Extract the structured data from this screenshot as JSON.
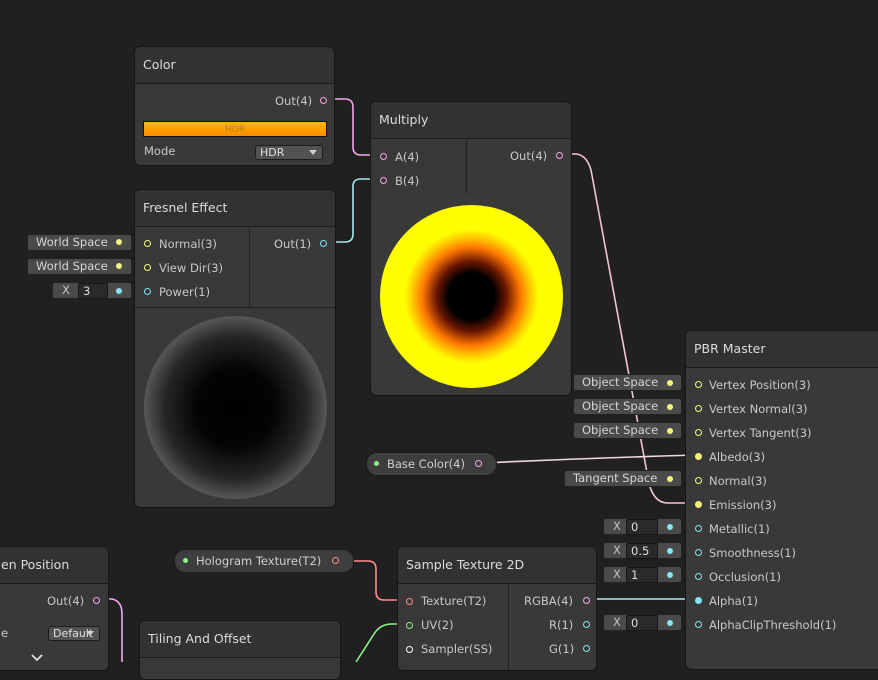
{
  "colors": {
    "background": "#202020",
    "port_vector4": "#f2a8e9",
    "port_vector3": "#f5f57c",
    "port_vector1": "#84e4f7",
    "port_texture": "#ff8b8b",
    "port_uv": "#8cf28c",
    "port_sampler": "#ffffff"
  },
  "color_node": {
    "title": "Color",
    "out_port": "Out(4)",
    "hdr_label": "HDR",
    "mode_label": "Mode",
    "mode_value": "HDR"
  },
  "multiply_node": {
    "title": "Multiply",
    "input_a": "A(4)",
    "input_b": "B(4)",
    "out_port": "Out(4)"
  },
  "fresnel_node": {
    "title": "Fresnel Effect",
    "input_normal": "Normal(3)",
    "input_view_dir": "View Dir(3)",
    "input_power": "Power(1)",
    "out_port": "Out(1)",
    "normal_space": "World Space",
    "view_dir_space": "World Space",
    "power_x_label": "X",
    "power_value": "3"
  },
  "pbr_master": {
    "title": "PBR Master",
    "inputs": [
      {
        "label": "Vertex Position(3)",
        "space": "Object Space"
      },
      {
        "label": "Vertex Normal(3)",
        "space": "Object Space"
      },
      {
        "label": "Vertex Tangent(3)",
        "space": "Object Space"
      },
      {
        "label": "Albedo(3)"
      },
      {
        "label": "Normal(3)",
        "space": "Tangent Space"
      },
      {
        "label": "Emission(3)"
      },
      {
        "label": "Metallic(1)",
        "x_label": "X",
        "value": "0"
      },
      {
        "label": "Smoothness(1)",
        "x_label": "X",
        "value": "0.5"
      },
      {
        "label": "Occlusion(1)",
        "x_label": "X",
        "value": "1"
      },
      {
        "label": "Alpha(1)"
      },
      {
        "label": "AlphaClipThreshold(1)",
        "x_label": "X",
        "value": "0"
      }
    ]
  },
  "base_color_property": {
    "label": "Base Color(4)"
  },
  "hologram_texture_property": {
    "label": "Hologram Texture(T2)"
  },
  "sample_texture_node": {
    "title": "Sample Texture 2D",
    "input_texture": "Texture(T2)",
    "input_uv": "UV(2)",
    "input_sampler": "Sampler(SS)",
    "out_rgba": "RGBA(4)",
    "out_r": "R(1)",
    "out_g": "G(1)"
  },
  "screen_position_node": {
    "title_visible": "en Position",
    "out_port": "Out(4)",
    "mode_prefix": "e",
    "mode_value": "Default"
  },
  "tiling_offset_node": {
    "title": "Tiling And Offset"
  }
}
